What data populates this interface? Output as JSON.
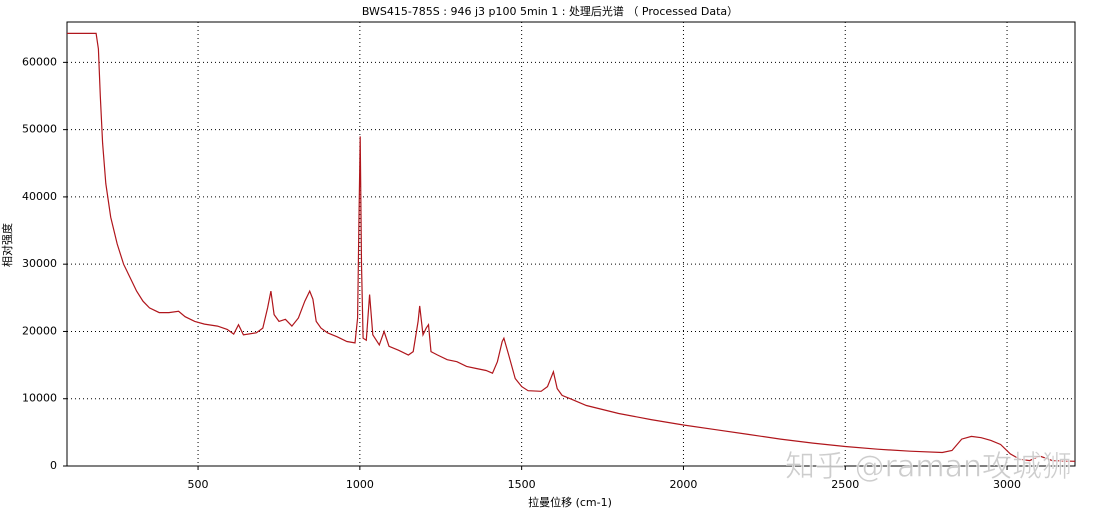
{
  "chart_data": {
    "type": "line",
    "title": "BWS415-785S : 946 j3 p100 5min 1 : 处理后光谱 （ Processed Data）",
    "x_label": "拉曼位移 (cm-1)",
    "y_label": "相对强度",
    "watermark": "知乎 @raman攻城狮",
    "color": "#b0161c",
    "grid": true,
    "xlim": [
      95,
      3210
    ],
    "ylim": [
      0,
      66000
    ],
    "xticks": [
      500,
      1000,
      1500,
      2000,
      2500,
      3000
    ],
    "yticks": [
      0,
      10000,
      20000,
      30000,
      40000,
      50000,
      60000
    ],
    "x": [
      95,
      185,
      192,
      198,
      205,
      215,
      230,
      250,
      270,
      290,
      310,
      330,
      350,
      380,
      410,
      440,
      460,
      490,
      520,
      560,
      590,
      610,
      625,
      640,
      680,
      700,
      715,
      725,
      735,
      750,
      770,
      790,
      810,
      830,
      845,
      855,
      865,
      880,
      900,
      930,
      960,
      985,
      993,
      997,
      1001,
      1005,
      1010,
      1020,
      1030,
      1040,
      1060,
      1075,
      1090,
      1120,
      1150,
      1165,
      1180,
      1185,
      1195,
      1205,
      1212,
      1220,
      1240,
      1270,
      1300,
      1330,
      1360,
      1390,
      1410,
      1425,
      1440,
      1445,
      1460,
      1480,
      1500,
      1520,
      1560,
      1580,
      1598,
      1610,
      1625,
      1650,
      1700,
      1800,
      1900,
      2000,
      2100,
      2200,
      2300,
      2400,
      2500,
      2600,
      2700,
      2800,
      2830,
      2860,
      2890,
      2920,
      2950,
      2980,
      3010,
      3040,
      3070,
      3100,
      3140,
      3210
    ],
    "values": [
      64300,
      64300,
      62000,
      55000,
      48000,
      42000,
      37000,
      33000,
      30000,
      28000,
      26000,
      24500,
      23500,
      22800,
      22800,
      23000,
      22200,
      21500,
      21100,
      20800,
      20300,
      19600,
      21000,
      19500,
      19800,
      20500,
      23500,
      26000,
      22500,
      21500,
      21800,
      20800,
      22000,
      24500,
      26000,
      24800,
      21500,
      20500,
      19800,
      19200,
      18500,
      18300,
      22000,
      36000,
      49000,
      30000,
      19000,
      18700,
      25500,
      19500,
      18000,
      20000,
      17800,
      17200,
      16500,
      17000,
      21500,
      23800,
      19500,
      20500,
      21000,
      17000,
      16500,
      15800,
      15500,
      14800,
      14500,
      14200,
      13800,
      15500,
      18500,
      19000,
      16500,
      13000,
      11800,
      11200,
      11100,
      11800,
      14000,
      11500,
      10500,
      10000,
      9000,
      7800,
      6900,
      6100,
      5400,
      4700,
      4000,
      3400,
      2900,
      2500,
      2200,
      2000,
      2300,
      4000,
      4400,
      4200,
      3800,
      3200,
      1800,
      1000,
      800,
      1500,
      800,
      700
    ]
  }
}
